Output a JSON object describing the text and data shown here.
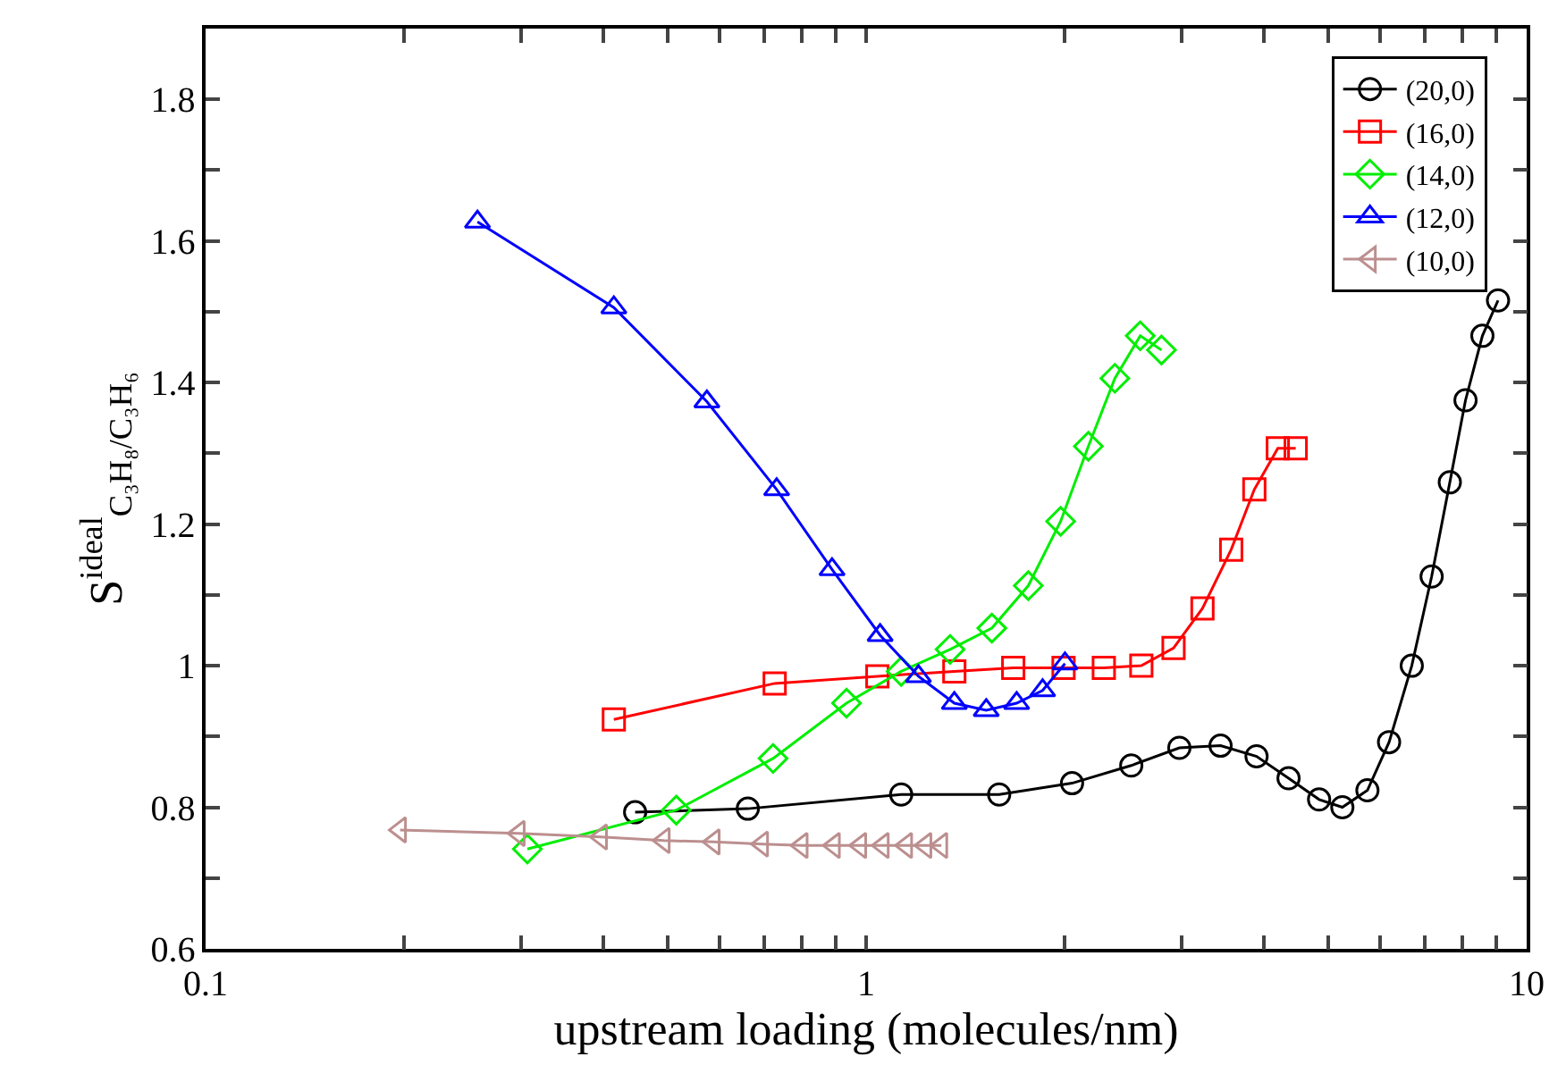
{
  "chart_data": {
    "type": "line",
    "xlabel": "upstream loading (molecules/nm)",
    "ylabel": "S$^{ideal}$$_{C₃H₈/C₃H₆}$",
    "log": "x",
    "legend": "top right",
    "line_style": "solid",
    "xlim": [
      0.1,
      10
    ],
    "xticks": [
      0.1,
      {
        "value": 0.2,
        "label": null
      },
      {
        "value": 0.3,
        "label": null
      },
      {
        "value": 0.4,
        "label": null
      },
      {
        "value": 0.5,
        "label": null
      },
      {
        "value": 0.6,
        "label": null
      },
      {
        "value": 0.7,
        "label": null
      },
      {
        "value": 0.8,
        "label": null
      },
      {
        "value": 0.9,
        "label": null
      },
      1,
      {
        "value": 2,
        "label": null
      },
      {
        "value": 3,
        "label": null
      },
      {
        "value": 4,
        "label": null
      },
      {
        "value": 5,
        "label": null
      },
      {
        "value": 6,
        "label": null
      },
      {
        "value": 7,
        "label": null
      },
      {
        "value": 8,
        "label": null
      },
      {
        "value": 9,
        "label": null
      },
      10
    ],
    "ylim": [
      0.6,
      1.9
    ],
    "yticks": [
      0.6,
      {
        "value": 0.7,
        "label": null
      },
      0.8,
      {
        "value": 0.9,
        "label": null
      },
      1,
      {
        "value": 1.1,
        "label": null
      },
      1.2,
      {
        "value": 1.3,
        "label": null
      },
      1.4,
      {
        "value": 1.5,
        "label": null
      },
      1.6,
      {
        "value": 1.7,
        "label": null
      },
      1.8
    ],
    "series": [
      {
        "name": "(20,0)",
        "color": "#000000",
        "marker": "circle",
        "x": [
          0.447,
          0.662,
          1.13,
          1.59,
          2.05,
          2.52,
          2.98,
          3.44,
          3.9,
          4.36,
          4.85,
          5.26,
          5.74,
          6.19,
          6.7,
          7.18,
          7.65,
          8.08,
          8.57,
          9.05
        ],
        "values": [
          0.793,
          0.798,
          0.818,
          0.818,
          0.834,
          0.859,
          0.884,
          0.887,
          0.872,
          0.841,
          0.811,
          0.8,
          0.824,
          0.892,
          1.0,
          1.126,
          1.259,
          1.375,
          1.466,
          1.516
        ]
      },
      {
        "name": "(16,0)",
        "color": "#ff0000",
        "marker": "square",
        "x": [
          0.415,
          0.727,
          1.04,
          1.36,
          1.67,
          1.99,
          2.29,
          2.61,
          2.92,
          3.23,
          3.57,
          3.87,
          4.2,
          4.47
        ],
        "values": [
          0.924,
          0.975,
          0.985,
          0.992,
          0.997,
          0.997,
          0.997,
          1.0,
          1.025,
          1.081,
          1.164,
          1.249,
          1.307,
          1.307
        ]
      },
      {
        "name": "(14,0)",
        "color": "#00ee00",
        "marker": "diamond",
        "x": [
          0.307,
          0.516,
          0.723,
          0.934,
          1.13,
          1.34,
          1.55,
          1.76,
          1.97,
          2.17,
          2.38,
          2.6,
          2.8
        ],
        "values": [
          0.741,
          0.796,
          0.869,
          0.947,
          0.992,
          1.023,
          1.053,
          1.113,
          1.204,
          1.31,
          1.406,
          1.466,
          1.446
        ]
      },
      {
        "name": "(12,0)",
        "color": "#0000ff",
        "marker": "triangle",
        "x": [
          0.258,
          0.415,
          0.574,
          0.732,
          0.888,
          1.05,
          1.2,
          1.36,
          1.52,
          1.69,
          1.85,
          2.0
        ],
        "values": [
          1.627,
          1.506,
          1.373,
          1.249,
          1.136,
          1.043,
          0.985,
          0.947,
          0.937,
          0.947,
          0.965,
          1.003
        ]
      },
      {
        "name": "(10,0)",
        "color": "#bc8f8f",
        "marker": "triangle-left",
        "x": [
          0.197,
          0.298,
          0.397,
          0.494,
          0.588,
          0.696,
          0.799,
          0.894,
          0.98,
          1.06,
          1.15,
          1.23,
          1.3
        ],
        "values": [
          0.768,
          0.763,
          0.758,
          0.753,
          0.751,
          0.748,
          0.746,
          0.746,
          0.746,
          0.746,
          0.746,
          0.746,
          0.746
        ]
      }
    ]
  }
}
